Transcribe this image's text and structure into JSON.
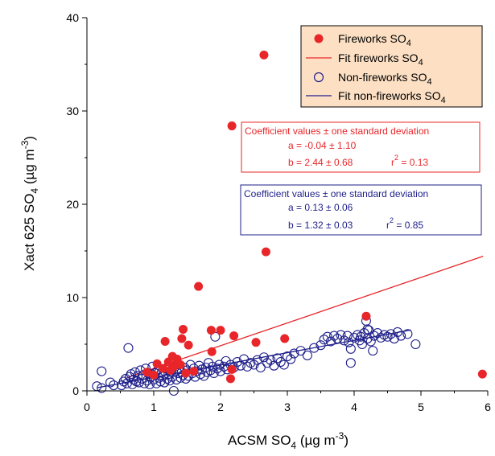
{
  "chart_data": {
    "type": "scatter",
    "xlabel": {
      "main": "ACSM SO",
      "sub": "4",
      "unit": " (µg m",
      "sup": "-3",
      "close": ")"
    },
    "ylabel": {
      "main": "Xact 625 SO",
      "sub": "4",
      "unit": " (µg m",
      "sup": "-3",
      "close": ")"
    },
    "xlim": [
      0,
      6
    ],
    "ylim": [
      0,
      40
    ],
    "xticks": [
      "0",
      "1",
      "2",
      "3",
      "4",
      "5",
      "6"
    ],
    "yticks": [
      "0",
      "10",
      "20",
      "30",
      "40"
    ],
    "colors": {
      "fireworks": "#e8262a",
      "nonfireworks": "#1f1f8a",
      "legend_bg": "#fde0c4"
    },
    "legend": {
      "position": "top-right",
      "items": [
        {
          "main": "Fireworks SO",
          "sub": "4",
          "kind": "filled-circle",
          "color": "#e8262a"
        },
        {
          "main": "Fit fireworks SO",
          "sub": "4",
          "kind": "line",
          "color": "#e8262a"
        },
        {
          "main": "Non-fireworks SO",
          "sub": "4",
          "kind": "open-circle",
          "color": "#1f1f8a"
        },
        {
          "main": "Fit non-fireworks SO",
          "sub": "4",
          "kind": "line",
          "color": "#1f1f8a"
        }
      ]
    },
    "annotations": {
      "fireworks": {
        "title": "Coefficient values ± one standard deviation",
        "a": "a = -0.04 ± 1.10",
        "b": "b =  2.44 ± 0.68",
        "r2_prefix": "r",
        "r2_sup": "2",
        "r2_value": " = 0.13"
      },
      "nonfireworks": {
        "title": "Coefficient values ± one standard deviation",
        "a": "a = 0.13 ± 0.06",
        "b": "b = 1.32 ± 0.03",
        "r2_prefix": "r",
        "r2_sup": "2",
        "r2_value": " = 0.85"
      }
    },
    "fits": [
      {
        "name": "Fit fireworks SO4",
        "x": [
          0.6,
          5.93
        ],
        "y": [
          1.42,
          14.43
        ]
      },
      {
        "name": "Fit non-fireworks SO4",
        "x": [
          0.15,
          4.85
        ],
        "y": [
          0.33,
          6.53
        ]
      }
    ],
    "series": [
      {
        "name": "Fireworks SO4",
        "marker": "filled-circle",
        "points": [
          [
            2.65,
            36.0
          ],
          [
            2.17,
            28.4
          ],
          [
            2.68,
            14.9
          ],
          [
            1.67,
            11.2
          ],
          [
            4.18,
            8.0
          ],
          [
            1.44,
            6.6
          ],
          [
            1.86,
            6.5
          ],
          [
            2.0,
            6.5
          ],
          [
            2.2,
            5.9
          ],
          [
            2.96,
            5.6
          ],
          [
            1.42,
            5.6
          ],
          [
            1.17,
            5.3
          ],
          [
            2.53,
            5.2
          ],
          [
            1.52,
            4.9
          ],
          [
            1.87,
            4.2
          ],
          [
            1.28,
            3.7
          ],
          [
            1.35,
            3.4
          ],
          [
            1.22,
            3.1
          ],
          [
            1.05,
            2.9
          ],
          [
            1.3,
            2.6
          ],
          [
            1.4,
            2.8
          ],
          [
            1.14,
            2.4
          ],
          [
            2.17,
            2.3
          ],
          [
            1.6,
            2.1
          ],
          [
            1.25,
            2.2
          ],
          [
            2.15,
            1.3
          ],
          [
            5.92,
            1.8
          ],
          [
            0.9,
            2.0
          ],
          [
            1.0,
            1.7
          ],
          [
            1.48,
            1.9
          ]
        ]
      },
      {
        "name": "Non-fireworks SO4",
        "marker": "open-circle",
        "points": [
          [
            0.15,
            0.5
          ],
          [
            0.22,
            0.3
          ],
          [
            0.35,
            0.9
          ],
          [
            0.4,
            0.6
          ],
          [
            0.22,
            2.1
          ],
          [
            0.52,
            0.6
          ],
          [
            0.55,
            1.0
          ],
          [
            0.58,
            1.3
          ],
          [
            0.6,
            0.8
          ],
          [
            0.62,
            4.6
          ],
          [
            0.64,
            1.5
          ],
          [
            0.66,
            1.8
          ],
          [
            0.68,
            0.7
          ],
          [
            0.7,
            1.2
          ],
          [
            0.72,
            2.0
          ],
          [
            0.74,
            1.0
          ],
          [
            0.76,
            1.6
          ],
          [
            0.78,
            0.9
          ],
          [
            0.8,
            2.2
          ],
          [
            0.82,
            1.3
          ],
          [
            0.84,
            1.7
          ],
          [
            0.86,
            0.8
          ],
          [
            0.88,
            2.4
          ],
          [
            0.9,
            1.1
          ],
          [
            0.92,
            1.9
          ],
          [
            0.94,
            0.7
          ],
          [
            0.96,
            1.5
          ],
          [
            0.98,
            2.6
          ],
          [
            1.0,
            1.2
          ],
          [
            1.02,
            1.9
          ],
          [
            1.04,
            0.8
          ],
          [
            1.06,
            2.2
          ],
          [
            1.08,
            1.4
          ],
          [
            1.1,
            1.0
          ],
          [
            1.12,
            2.0
          ],
          [
            1.14,
            1.6
          ],
          [
            1.16,
            0.9
          ],
          [
            1.18,
            2.4
          ],
          [
            1.2,
            1.3
          ],
          [
            1.22,
            1.8
          ],
          [
            1.24,
            1.1
          ],
          [
            1.26,
            2.1
          ],
          [
            1.28,
            1.5
          ],
          [
            1.3,
            0.0
          ],
          [
            1.32,
            2.6
          ],
          [
            1.34,
            1.2
          ],
          [
            1.36,
            1.9
          ],
          [
            1.38,
            2.3
          ],
          [
            1.4,
            1.4
          ],
          [
            1.42,
            2.0
          ],
          [
            1.44,
            1.7
          ],
          [
            1.46,
            2.5
          ],
          [
            1.48,
            1.3
          ],
          [
            1.5,
            2.2
          ],
          [
            1.52,
            1.6
          ],
          [
            1.55,
            2.8
          ],
          [
            1.58,
            1.9
          ],
          [
            1.6,
            2.4
          ],
          [
            1.62,
            1.5
          ],
          [
            1.65,
            2.1
          ],
          [
            1.68,
            2.7
          ],
          [
            1.7,
            1.8
          ],
          [
            1.72,
            2.3
          ],
          [
            1.75,
            1.6
          ],
          [
            1.78,
            2.5
          ],
          [
            1.8,
            2.0
          ],
          [
            1.82,
            3.0
          ],
          [
            1.85,
            2.2
          ],
          [
            1.88,
            2.6
          ],
          [
            1.9,
            1.9
          ],
          [
            1.92,
            5.8
          ],
          [
            1.95,
            2.4
          ],
          [
            1.98,
            2.8
          ],
          [
            2.0,
            2.1
          ],
          [
            2.05,
            2.6
          ],
          [
            2.08,
            3.2
          ],
          [
            2.1,
            2.3
          ],
          [
            2.15,
            2.8
          ],
          [
            2.2,
            2.5
          ],
          [
            2.25,
            3.1
          ],
          [
            2.3,
            2.7
          ],
          [
            2.35,
            3.4
          ],
          [
            2.4,
            2.6
          ],
          [
            2.45,
            3.0
          ],
          [
            2.5,
            2.8
          ],
          [
            2.55,
            3.3
          ],
          [
            2.6,
            2.5
          ],
          [
            2.65,
            3.6
          ],
          [
            2.7,
            3.0
          ],
          [
            2.75,
            3.3
          ],
          [
            2.8,
            2.7
          ],
          [
            2.85,
            3.5
          ],
          [
            2.9,
            3.1
          ],
          [
            2.95,
            2.8
          ],
          [
            3.0,
            3.7
          ],
          [
            3.05,
            3.4
          ],
          [
            3.1,
            4.0
          ],
          [
            3.2,
            4.3
          ],
          [
            3.3,
            3.8
          ],
          [
            3.4,
            4.6
          ],
          [
            3.5,
            4.9
          ],
          [
            3.55,
            5.5
          ],
          [
            3.6,
            5.8
          ],
          [
            3.65,
            5.3
          ],
          [
            3.7,
            5.9
          ],
          [
            3.75,
            5.6
          ],
          [
            3.8,
            6.0
          ],
          [
            3.85,
            5.4
          ],
          [
            3.9,
            5.9
          ],
          [
            3.92,
            5.2
          ],
          [
            3.95,
            4.5
          ],
          [
            4.0,
            5.7
          ],
          [
            4.05,
            6.0
          ],
          [
            4.08,
            5.4
          ],
          [
            4.1,
            5.8
          ],
          [
            4.12,
            5.0
          ],
          [
            4.15,
            6.2
          ],
          [
            4.18,
            7.5
          ],
          [
            4.2,
            5.6
          ],
          [
            4.22,
            6.5
          ],
          [
            4.25,
            5.3
          ],
          [
            4.28,
            4.3
          ],
          [
            4.3,
            5.9
          ],
          [
            4.35,
            6.2
          ],
          [
            4.4,
            5.7
          ],
          [
            4.45,
            6.0
          ],
          [
            4.5,
            5.8
          ],
          [
            4.55,
            6.1
          ],
          [
            4.6,
            5.6
          ],
          [
            4.65,
            6.3
          ],
          [
            4.7,
            5.9
          ],
          [
            4.8,
            6.1
          ],
          [
            4.92,
            5.0
          ],
          [
            3.95,
            3.0
          ],
          [
            4.2,
            6.6
          ]
        ]
      }
    ]
  }
}
